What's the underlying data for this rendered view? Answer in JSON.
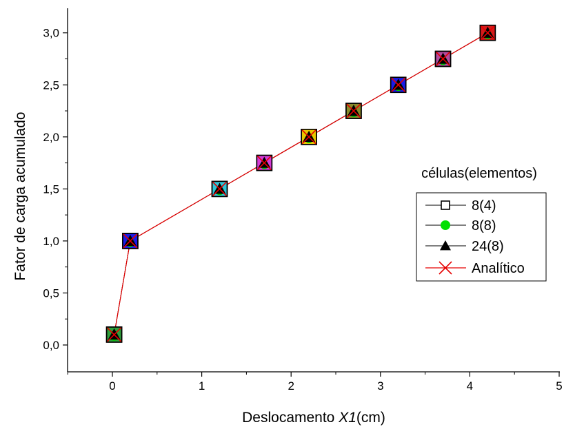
{
  "chart_data": {
    "type": "line",
    "xlabel_prefix": "Deslocamento ",
    "xlabel_var": "X1",
    "xlabel_suffix": "(cm)",
    "ylabel": "Fator de carga acumulado",
    "xlim": [
      -0.5,
      5
    ],
    "ylim": [
      -0.2,
      3.25
    ],
    "x_ticks": [
      "0",
      "1",
      "2",
      "3",
      "4",
      "5"
    ],
    "y_ticks": [
      "0,0",
      "0,5",
      "1,0",
      "1,5",
      "2,0",
      "2,5",
      "3,0"
    ],
    "legend_title": "células(elementos)",
    "legend_position": "right",
    "marker_fill_colors": [
      "#2f9e3b",
      "#1a1ae6",
      "#2fc4d6",
      "#d63ad6",
      "#e6c800",
      "#8a8a2a",
      "#1a1ae6",
      "#b44aa0",
      "#d61a1a"
    ],
    "series": [
      {
        "name": "8(4)",
        "marker": "open-square",
        "color": "#000000",
        "x": [
          0.02,
          0.2,
          1.2,
          1.7,
          2.2,
          2.7,
          3.2,
          3.7,
          4.2
        ],
        "y": [
          0.1,
          1.0,
          1.5,
          1.75,
          2.0,
          2.25,
          2.5,
          2.75,
          3.0
        ]
      },
      {
        "name": "8(8)",
        "marker": "green-circle",
        "color": "#000000",
        "marker_color": "#00e000",
        "x": [
          0.02,
          0.2,
          1.2,
          1.7,
          2.2,
          2.7,
          3.2,
          3.7,
          4.2
        ],
        "y": [
          0.1,
          1.0,
          1.5,
          1.75,
          2.0,
          2.25,
          2.5,
          2.75,
          3.0
        ]
      },
      {
        "name": "24(8)",
        "marker": "filled-triangle",
        "color": "#000000",
        "x": [
          0.02,
          0.2,
          1.2,
          1.7,
          2.2,
          2.7,
          3.2,
          3.7,
          4.2
        ],
        "y": [
          0.1,
          1.0,
          1.5,
          1.75,
          2.0,
          2.25,
          2.5,
          2.75,
          3.0
        ]
      },
      {
        "name": "Analítico",
        "marker": "cross",
        "color": "#e60000",
        "x": [
          0.02,
          0.2,
          1.2,
          1.7,
          2.2,
          2.7,
          3.2,
          3.7,
          4.2
        ],
        "y": [
          0.1,
          1.0,
          1.5,
          1.75,
          2.0,
          2.25,
          2.5,
          2.75,
          3.0
        ]
      }
    ]
  }
}
